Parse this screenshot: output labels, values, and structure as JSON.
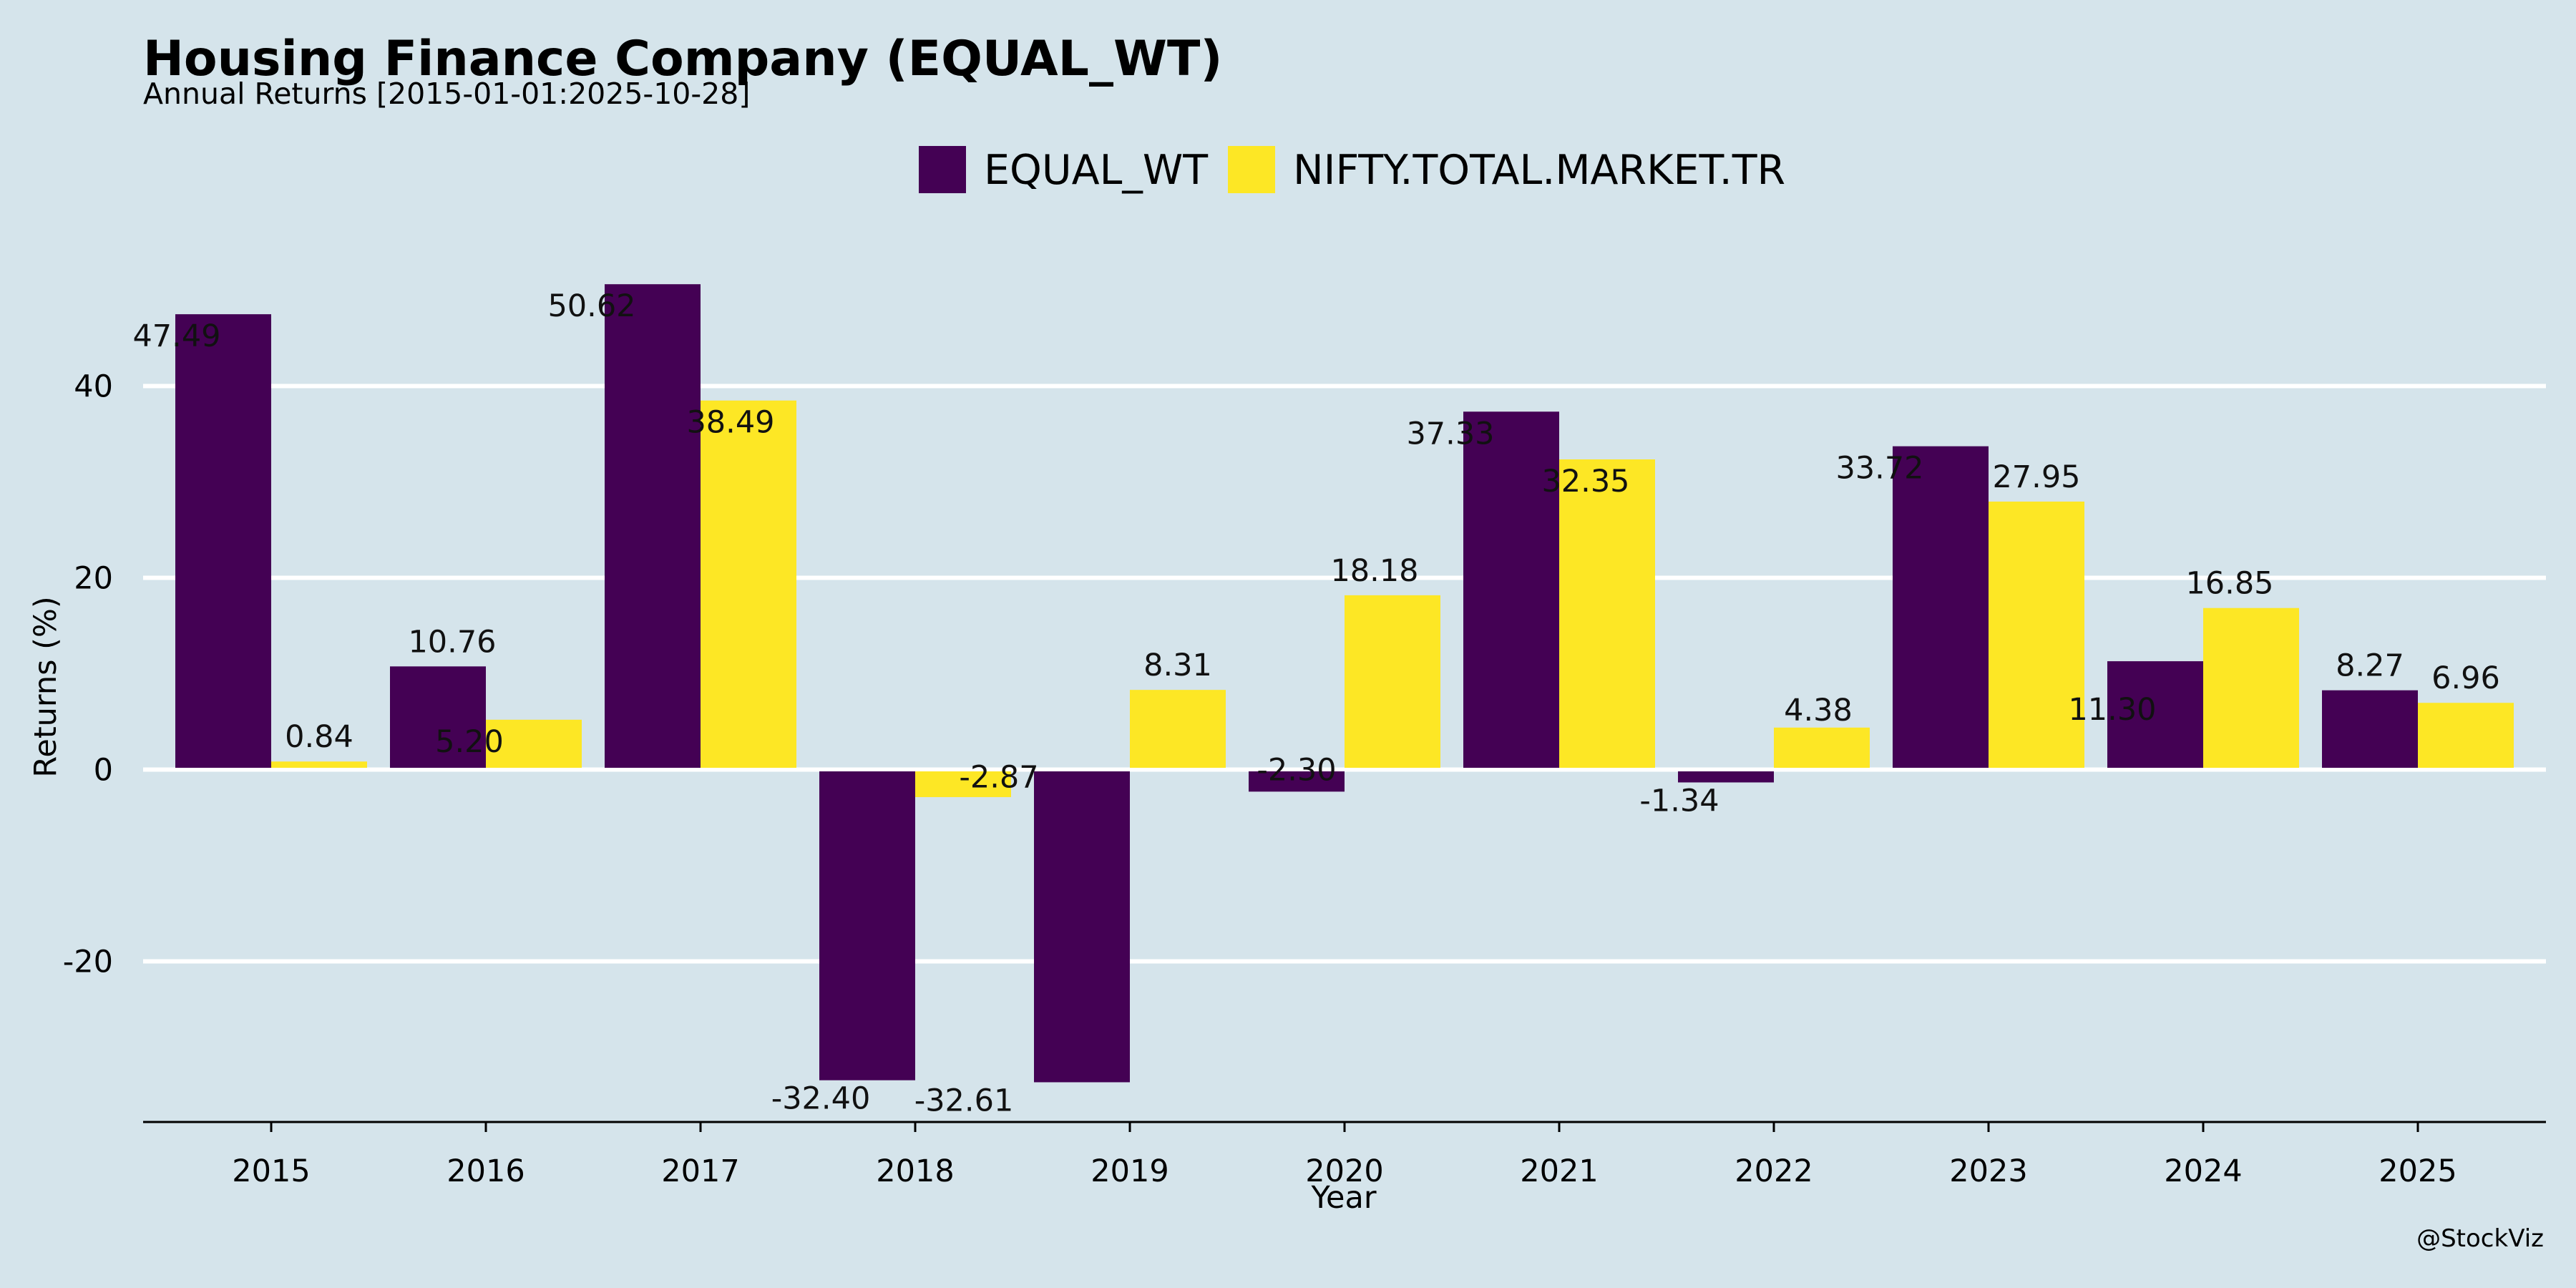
{
  "chart_data": {
    "type": "bar",
    "title": "Housing Finance Company (EQUAL_WT)",
    "subtitle": "Annual Returns [2015-01-01:2025-10-28]",
    "xlabel": "Year",
    "ylabel": "Returns (%)",
    "categories": [
      "2015",
      "2016",
      "2017",
      "2018",
      "2019",
      "2020",
      "2021",
      "2022",
      "2023",
      "2024",
      "2025"
    ],
    "series": [
      {
        "name": "EQUAL_WT",
        "color": "#440154",
        "values": [
          47.49,
          10.76,
          50.62,
          -32.4,
          -32.61,
          -2.3,
          37.33,
          -1.34,
          33.72,
          11.3,
          8.27
        ],
        "labels": [
          "47.49",
          "10.76",
          "50.62",
          "-32.40",
          "-32.61",
          "-2.30",
          "37.33",
          "-1.34",
          "33.72",
          "11.30",
          "8.27"
        ]
      },
      {
        "name": "NIFTY.TOTAL.MARKET.TR",
        "color": "#fde725",
        "values": [
          0.84,
          5.2,
          38.49,
          -2.87,
          8.31,
          18.18,
          32.35,
          4.38,
          27.95,
          16.85,
          6.96
        ],
        "labels": [
          "0.84",
          "5.20",
          "38.49",
          "-2.87",
          "8.31",
          "18.18",
          "32.35",
          "4.38",
          "27.95",
          "16.85",
          "6.96"
        ]
      }
    ],
    "yticks": [
      -20,
      0,
      20,
      40
    ],
    "ytick_labels": [
      "-20",
      "0",
      "20",
      "40"
    ],
    "ylim": [
      -37,
      55
    ],
    "grid": true,
    "legend_position": "top-center",
    "background": "#d5e4eb",
    "gridline_color": "#ffffff"
  },
  "caption": "@StockViz"
}
